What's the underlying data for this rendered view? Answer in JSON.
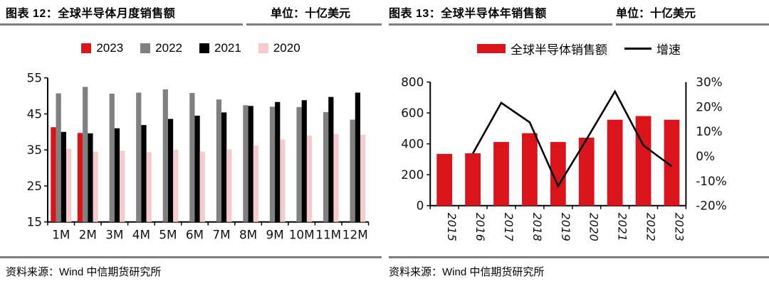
{
  "theme": {
    "rule_color": "#7f7f7f",
    "accent_red": "#d9151b",
    "gray": "#808080",
    "black": "#000000",
    "pink": "#f5ccce"
  },
  "figures": [
    {
      "title": "图表 12：全球半导体月度销售额",
      "unit": "单位：十亿美元",
      "source": "资料来源：Wind  中信期货研究所"
    },
    {
      "title": "图表 13：全球半导体年销售额",
      "unit": "单位：十亿美元",
      "source": "资料来源：Wind  中信期货研究所"
    }
  ],
  "chart_data": [
    {
      "type": "bar",
      "title": "全球半导体月度销售额",
      "categories": [
        "1M",
        "2M",
        "3M",
        "4M",
        "5M",
        "6M",
        "7M",
        "8M",
        "9M",
        "10M",
        "11M",
        "12M"
      ],
      "series": [
        {
          "name": "2023",
          "color": "#d9151b",
          "values": [
            41.3,
            39.7,
            null,
            null,
            null,
            null,
            null,
            null,
            null,
            null,
            null,
            null
          ]
        },
        {
          "name": "2022",
          "color": "#808080",
          "values": [
            50.7,
            52.5,
            50.6,
            50.9,
            51.8,
            50.8,
            49.0,
            47.4,
            47.0,
            46.9,
            45.5,
            43.4
          ]
        },
        {
          "name": "2021",
          "color": "#000000",
          "values": [
            40.0,
            39.6,
            41.0,
            41.9,
            43.6,
            44.5,
            45.4,
            47.2,
            48.3,
            48.8,
            49.7,
            50.9
          ]
        },
        {
          "name": "2020",
          "color": "#f5ccce",
          "values": [
            35.3,
            34.5,
            34.8,
            34.4,
            35.0,
            34.5,
            35.2,
            36.2,
            37.9,
            39.0,
            39.4,
            39.2
          ]
        }
      ],
      "ylim": [
        15,
        55
      ],
      "yticks": [
        15,
        25,
        35,
        45,
        55
      ],
      "grid": false,
      "legend_position": "top"
    },
    {
      "type": "bar+line",
      "title": "全球半导体年销售额",
      "categories": [
        "2015",
        "2016",
        "2017",
        "2018",
        "2019",
        "2020",
        "2021",
        "2022",
        "2023"
      ],
      "bar_series": {
        "name": "全球半导体销售额",
        "color": "#d9151b",
        "axis": "left",
        "values": [
          335,
          339,
          412,
          469,
          412,
          440,
          556,
          580,
          556
        ]
      },
      "line_series": {
        "name": "增速",
        "color": "#000000",
        "axis": "right",
        "values": [
          null,
          1.1,
          21.6,
          13.7,
          -12.1,
          6.8,
          26.2,
          4.4,
          -4.1
        ]
      },
      "left_axis": {
        "lim": [
          0,
          800
        ],
        "ticks": [
          0,
          200,
          400,
          600,
          800
        ]
      },
      "right_axis": {
        "lim": [
          -20,
          30
        ],
        "ticks": [
          -20,
          -10,
          0,
          10,
          20,
          30
        ],
        "tick_labels": [
          "-20%",
          "-10%",
          "0%",
          "10%",
          "20%",
          "30%"
        ]
      },
      "grid": false,
      "legend_position": "top"
    }
  ]
}
